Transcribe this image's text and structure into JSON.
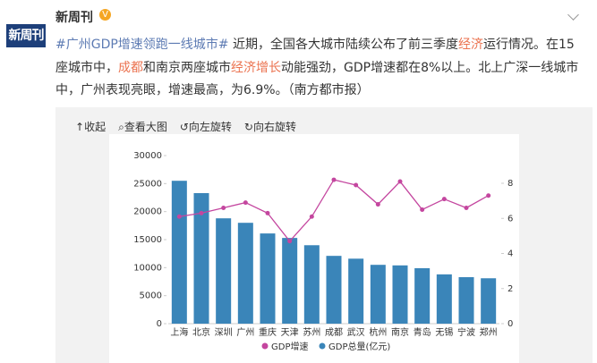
{
  "header": {
    "logo": "新周刊",
    "name": "新周刊"
  },
  "post": {
    "segments": [
      {
        "text": "#广州GDP增速领跑一线城市#",
        "color": "#5d7bb3"
      },
      {
        "text": " 近期，全国各大城市陆续公布了前三季度"
      },
      {
        "text": "经济",
        "color": "#eb7350"
      },
      {
        "text": "运行情况。在15座城市中，"
      },
      {
        "text": "成都",
        "color": "#eb7350"
      },
      {
        "text": "和南京两座城市"
      },
      {
        "text": "经济增长",
        "color": "#eb7350"
      },
      {
        "text": "动能强劲，GDP增速都在8%以上。北上广深一线城市中，广州表现亮眼，增速最高，为6.9%。（南方都市报）"
      }
    ]
  },
  "toolbar": [
    "收起",
    "查看大图",
    "向左旋转",
    "向右旋转"
  ],
  "chart_data": {
    "type": "combo",
    "categories": [
      "上海",
      "北京",
      "深圳",
      "广州",
      "重庆",
      "天津",
      "苏州",
      "成都",
      "武汉",
      "杭州",
      "南京",
      "青岛",
      "无锡",
      "宁波",
      "郑州"
    ],
    "series": [
      {
        "name": "GDP增速",
        "type": "line",
        "axis": "y2",
        "color": "#c4469f",
        "values": [
          6.1,
          6.3,
          6.6,
          6.9,
          6.3,
          4.7,
          6.1,
          8.2,
          7.9,
          6.8,
          8.1,
          6.5,
          7.1,
          6.6,
          7.3
        ]
      },
      {
        "name": "GDP总量(亿元)",
        "type": "bar",
        "axis": "y",
        "color": "#3a85b9",
        "values": [
          25500,
          23300,
          18800,
          18000,
          16100,
          15300,
          14000,
          12100,
          11600,
          10500,
          10400,
          9900,
          8800,
          8300,
          8100
        ]
      }
    ],
    "ylim": [
      0,
      30000
    ],
    "yticks": [
      0,
      5000,
      10000,
      15000,
      20000,
      25000,
      30000
    ],
    "y2lim": [
      0,
      8
    ],
    "y2ticks": [
      0,
      2,
      4,
      6,
      8
    ],
    "grid": false,
    "legend": "bottom"
  }
}
